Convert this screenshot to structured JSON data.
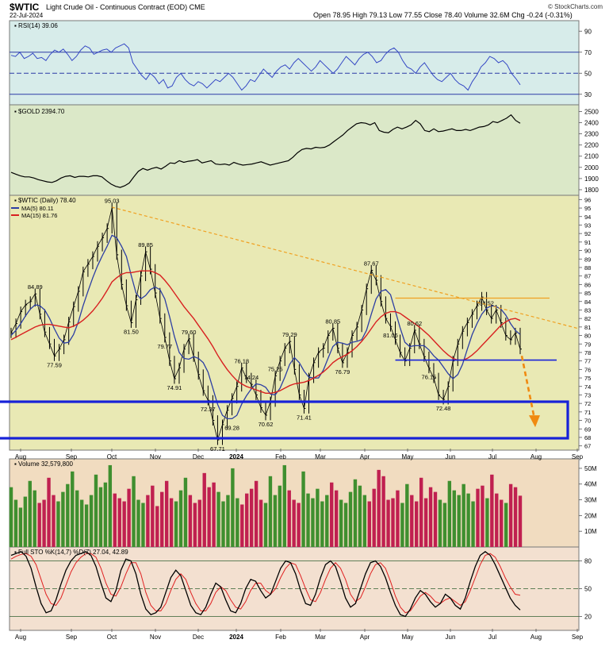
{
  "header": {
    "symbol": "$WTIC",
    "description": "Light Crude Oil - Continuous Contract (EOD) CME",
    "date": "22-Jul-2024",
    "ohlc": "Open 78.95  High 79.13  Low 77.55  Close 78.40  Volume 32.6M  Chg -0.24 (-0.31%)",
    "watermark": "© StockCharts.com"
  },
  "chart_data": [
    {
      "type": "line",
      "panel": "rsi",
      "title": "RSI(14) 39.06",
      "ylim": [
        20,
        100
      ],
      "yticks": [
        30,
        50,
        70,
        90
      ],
      "reference_lines": [
        30,
        50,
        70
      ],
      "series": [
        {
          "values": [
            67,
            66,
            70,
            64,
            66,
            69,
            64,
            65,
            62,
            68,
            72,
            70,
            73,
            68,
            62,
            66,
            72,
            76,
            74,
            68,
            70,
            72,
            73,
            70,
            74,
            76,
            78,
            74,
            60,
            54,
            48,
            44,
            50,
            46,
            40,
            44,
            36,
            38,
            46,
            50,
            44,
            40,
            38,
            42,
            40,
            36,
            40,
            44,
            42,
            46,
            50,
            46,
            40,
            34,
            38,
            44,
            42,
            48,
            54,
            50,
            46,
            52,
            56,
            58,
            54,
            60,
            64,
            60,
            56,
            52,
            56,
            62,
            58,
            54,
            50,
            54,
            60,
            66,
            62,
            58,
            64,
            68,
            70,
            66,
            60,
            62,
            68,
            72,
            74,
            70,
            62,
            56,
            54,
            50,
            56,
            60,
            54,
            48,
            44,
            42,
            46,
            50,
            44,
            40,
            38,
            34,
            42,
            48,
            56,
            60,
            66,
            64,
            60,
            62,
            58,
            50,
            45,
            39
          ]
        }
      ]
    },
    {
      "type": "line",
      "panel": "gold",
      "title": "$GOLD 2394.70",
      "ylim": [
        1750,
        2560
      ],
      "yticks": [
        1800,
        1900,
        2000,
        2100,
        2200,
        2300,
        2400,
        2500
      ],
      "series": [
        {
          "values": [
            1955,
            1940,
            1925,
            1915,
            1915,
            1905,
            1890,
            1880,
            1870,
            1865,
            1880,
            1905,
            1920,
            1925,
            1910,
            1920,
            1920,
            1915,
            1925,
            1925,
            1915,
            1880,
            1850,
            1830,
            1820,
            1835,
            1860,
            1915,
            1965,
            1990,
            1975,
            1990,
            2000,
            1985,
            2010,
            2040,
            2035,
            2060,
            2045,
            2055,
            2060,
            2070,
            2040,
            2050,
            2060,
            2030,
            2025,
            2030,
            2020,
            2045,
            2030,
            2020,
            2025,
            2030,
            2040,
            2050,
            2035,
            2020,
            2030,
            2040,
            2050,
            2060,
            2090,
            2130,
            2160,
            2170,
            2165,
            2180,
            2175,
            2180,
            2200,
            2230,
            2260,
            2290,
            2330,
            2360,
            2390,
            2400,
            2395,
            2380,
            2400,
            2330,
            2315,
            2310,
            2340,
            2360,
            2345,
            2360,
            2380,
            2420,
            2390,
            2330,
            2320,
            2345,
            2320,
            2325,
            2335,
            2345,
            2330,
            2330,
            2340,
            2330,
            2345,
            2360,
            2365,
            2380,
            2410,
            2400,
            2420,
            2440,
            2470,
            2420,
            2394.7
          ]
        }
      ]
    },
    {
      "type": "line",
      "panel": "price",
      "title": "$WTIC (Daily) 78.40",
      "ylim": [
        66.5,
        96.5
      ],
      "yticks": [
        67,
        68,
        69,
        70,
        71,
        72,
        73,
        74,
        75,
        76,
        77,
        78,
        79,
        80,
        81,
        82,
        83,
        84,
        85,
        86,
        87,
        88,
        89,
        90,
        91,
        92,
        93,
        94,
        95,
        96
      ],
      "xlabels": [
        "Aug",
        "Sep",
        "Oct",
        "Nov",
        "Dec",
        "2024",
        "Feb",
        "Mar",
        "Apr",
        "May",
        "Jun",
        "Jul",
        "Aug",
        "Sep"
      ],
      "series": [
        {
          "name": "$WTIC (Daily)",
          "values": [
            80.3,
            81.4,
            82.8,
            83.6,
            84.0,
            84.89,
            82.5,
            80.4,
            79.0,
            77.59,
            78.4,
            79.5,
            81.6,
            83.4,
            85.2,
            87.5,
            88.4,
            89.3,
            90.5,
            91.5,
            92.6,
            95.03,
            89.5,
            86.0,
            83.5,
            81.5,
            84.2,
            87.0,
            89.85,
            87.8,
            85.0,
            82.0,
            79.77,
            77.0,
            74.91,
            76.2,
            78.4,
            79.6,
            77.5,
            75.4,
            73.5,
            72.37,
            70.0,
            67.71,
            69.5,
            71.2,
            72.6,
            74.0,
            76.18,
            75.0,
            74.24,
            73.0,
            71.5,
            70.62,
            72.2,
            75.25,
            77.0,
            78.5,
            79.29,
            76.0,
            73.0,
            71.41,
            75.0,
            76.8,
            78.0,
            78.5,
            80.0,
            80.85,
            78.5,
            76.79,
            78.0,
            80.0,
            81.0,
            83.0,
            85.5,
            87.67,
            86.5,
            84.0,
            82.0,
            81.06,
            79.5,
            78.0,
            77.0,
            78.5,
            80.62,
            79.0,
            77.5,
            76.15,
            75.0,
            73.0,
            72.48,
            74.0,
            77.0,
            79.0,
            80.5,
            81.5,
            82.5,
            83.5,
            84.52,
            83.0,
            82.0,
            83.0,
            81.5,
            80.0,
            79.5,
            80.3,
            78.4
          ]
        },
        {
          "name": "MA(5) 80.11",
          "values": [
            80.0,
            80.6,
            81.4,
            82.3,
            83.1,
            83.6,
            83.5,
            83.0,
            82.0,
            80.8,
            79.7,
            79.1,
            79.2,
            80.1,
            81.6,
            83.5,
            85.2,
            86.8,
            88.2,
            89.4,
            90.5,
            91.8,
            91.5,
            90.5,
            89.3,
            87.1,
            85.0,
            84.3,
            84.7,
            85.4,
            85.7,
            85.4,
            84.3,
            82.2,
            79.9,
            78.0,
            77.3,
            77.2,
            77.5,
            77.3,
            76.8,
            75.7,
            73.8,
            71.9,
            70.6,
            70.2,
            70.2,
            70.6,
            71.9,
            72.9,
            73.7,
            74.3,
            74.2,
            73.9,
            73.1,
            73.0,
            73.8,
            75.1,
            76.6,
            77.4,
            76.8,
            75.8,
            75.1,
            75.0,
            75.0,
            75.9,
            77.3,
            78.7,
            79.2,
            79.1,
            78.9,
            79.2,
            79.3,
            79.5,
            80.6,
            82.5,
            84.3,
            85.2,
            85.4,
            84.8,
            82.9,
            80.9,
            79.2,
            78.7,
            78.8,
            78.8,
            78.8,
            78.3,
            77.6,
            77.1,
            76.3,
            75.5,
            74.9,
            75.4,
            76.6,
            78.4,
            80.1,
            81.4,
            82.5,
            83.2,
            83.5,
            83.4,
            83.1,
            82.4,
            81.4,
            80.6,
            80.11
          ]
        },
        {
          "name": "MA(15) 81.76",
          "values": [
            79.5,
            79.8,
            80.1,
            80.4,
            80.7,
            81.0,
            81.2,
            81.3,
            81.3,
            81.2,
            81.1,
            81.0,
            80.9,
            81.1,
            81.4,
            81.8,
            82.3,
            82.9,
            83.6,
            84.4,
            85.3,
            86.3,
            86.8,
            87.2,
            87.4,
            87.4,
            87.5,
            87.6,
            87.6,
            87.6,
            87.4,
            87.1,
            86.5,
            85.8,
            85.0,
            84.2,
            83.4,
            82.7,
            82.0,
            81.2,
            80.4,
            79.6,
            78.7,
            77.7,
            76.8,
            76.0,
            75.3,
            74.7,
            74.3,
            74.0,
            73.8,
            73.6,
            73.4,
            73.2,
            73.2,
            73.3,
            73.5,
            73.8,
            74.1,
            74.3,
            74.4,
            74.5,
            74.7,
            75.0,
            75.3,
            75.7,
            76.2,
            76.8,
            77.2,
            77.5,
            77.8,
            78.2,
            78.7,
            79.3,
            80.0,
            80.8,
            81.6,
            82.2,
            82.6,
            82.8,
            82.8,
            82.6,
            82.2,
            81.8,
            81.4,
            81.0,
            80.5,
            80.0,
            79.4,
            78.8,
            78.2,
            77.7,
            77.3,
            77.1,
            77.1,
            77.3,
            77.7,
            78.2,
            78.8,
            79.4,
            80.0,
            80.6,
            81.2,
            81.6,
            81.9,
            82.0,
            81.76
          ]
        }
      ],
      "price_labels": [
        "84.89",
        "77.59",
        "95.03",
        "81.50",
        "89.85",
        "79.77",
        "74.91",
        "79.60",
        "72.37",
        "67.71",
        "76.18",
        "74.24",
        "75.25",
        "70.62",
        "69.28",
        "79.29",
        "71.41",
        "80.85",
        "76.79",
        "87.67",
        "81.06",
        "80.62",
        "76.15",
        "72.48",
        "84.52"
      ]
    },
    {
      "type": "bar",
      "panel": "volume",
      "title": "Volume 32,579,800",
      "ylim": [
        0,
        56
      ],
      "ytick_labels": [
        "10M",
        "20M",
        "30M",
        "40M",
        "50M"
      ],
      "yticks": [
        10,
        20,
        30,
        40,
        50
      ],
      "series": [
        {
          "values": [
            38,
            30,
            25,
            32,
            42,
            36,
            28,
            30,
            44,
            33,
            29,
            35,
            40,
            48,
            36,
            30,
            27,
            33,
            46,
            38,
            41,
            52,
            34,
            31,
            29,
            37,
            45,
            30,
            28,
            33,
            39,
            26,
            35,
            42,
            31,
            29,
            36,
            44,
            33,
            28,
            30,
            47,
            38,
            41,
            35,
            29,
            33,
            50,
            31,
            27,
            34,
            37,
            42,
            30,
            28,
            45,
            33,
            39,
            52,
            36,
            30,
            28,
            48,
            34,
            31,
            37,
            29,
            33,
            41,
            36,
            30,
            28,
            35,
            43,
            39,
            33,
            29,
            37,
            49,
            45,
            30,
            31,
            36,
            28,
            40,
            33,
            29,
            44,
            31,
            38,
            35,
            30,
            28,
            42,
            36,
            33,
            40,
            34,
            29,
            37,
            39,
            31,
            46,
            34,
            30,
            28,
            40,
            38,
            32.6
          ]
        }
      ]
    },
    {
      "type": "line",
      "panel": "stochastic",
      "title": "Full STO %K(14,7) %D(7) 27.04, 42.89",
      "ylim": [
        5,
        95
      ],
      "yticks": [
        20,
        50,
        80
      ],
      "reference_lines": [
        20,
        50,
        80
      ],
      "xlabels": [
        "Aug",
        "Sep",
        "Oct",
        "Nov",
        "Dec",
        "2024",
        "Feb",
        "Mar",
        "Apr",
        "May",
        "Jun",
        "Jul",
        "Aug",
        "Sep"
      ],
      "series": [
        {
          "name": "%K",
          "values": [
            86,
            88,
            90,
            85,
            72,
            52,
            34,
            24,
            26,
            38,
            55,
            70,
            80,
            86,
            88,
            90,
            86,
            74,
            56,
            40,
            36,
            48,
            70,
            82,
            80,
            66,
            44,
            28,
            22,
            24,
            30,
            46,
            62,
            70,
            64,
            48,
            32,
            24,
            22,
            30,
            44,
            56,
            52,
            38,
            26,
            24,
            34,
            50,
            60,
            58,
            48,
            40,
            44,
            58,
            72,
            80,
            78,
            66,
            48,
            34,
            32,
            44,
            62,
            76,
            80,
            74,
            58,
            40,
            30,
            34,
            50,
            66,
            78,
            80,
            74,
            62,
            46,
            32,
            22,
            20,
            28,
            40,
            48,
            44,
            36,
            30,
            34,
            44,
            40,
            32,
            28,
            40,
            58,
            74,
            86,
            90,
            86,
            76,
            64,
            52,
            40,
            32,
            27.04
          ]
        },
        {
          "name": "%D",
          "values": [
            82,
            85,
            87,
            88,
            85,
            76,
            60,
            44,
            34,
            32,
            40,
            54,
            68,
            78,
            84,
            88,
            88,
            84,
            72,
            56,
            44,
            42,
            52,
            66,
            78,
            78,
            66,
            46,
            32,
            26,
            26,
            34,
            48,
            60,
            66,
            60,
            46,
            34,
            26,
            26,
            34,
            46,
            52,
            48,
            38,
            30,
            28,
            36,
            48,
            56,
            56,
            48,
            44,
            50,
            62,
            72,
            78,
            76,
            64,
            50,
            38,
            36,
            46,
            60,
            72,
            78,
            72,
            60,
            44,
            36,
            40,
            52,
            66,
            76,
            78,
            72,
            58,
            42,
            30,
            24,
            26,
            34,
            42,
            46,
            42,
            36,
            34,
            38,
            40,
            36,
            32,
            36,
            48,
            62,
            76,
            86,
            88,
            84,
            74,
            62,
            52,
            44,
            42.89
          ]
        }
      ]
    }
  ],
  "colors": {
    "rsi_bg": "#d7ecea",
    "gold_bg": "#dbe8c8",
    "price_bg": "#e9e9b4",
    "volume_bg": "#f1dcc0",
    "sto_bg": "#f3e0d0",
    "price_line": "#000000",
    "ma5": "#2c3ea3",
    "ma15": "#d82020",
    "rsi_line": "#3447c4",
    "box": "#1722d8",
    "support": "#1722d8",
    "resistance": "#f0a020",
    "trend": "#f0a020",
    "vol_up": "#3f8f2f",
    "vol_down": "#c02050"
  }
}
